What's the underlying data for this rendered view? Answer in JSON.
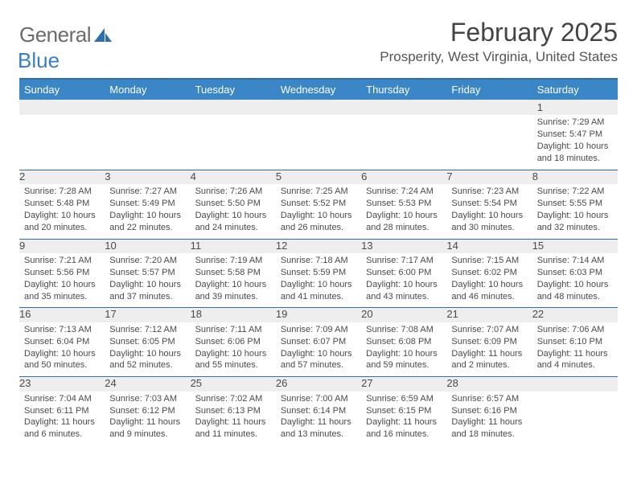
{
  "logo": {
    "main": "General",
    "sub": "Blue"
  },
  "title": "February 2025",
  "location": "Prosperity, West Virginia, United States",
  "colors": {
    "header_bg": "#3a86c6",
    "rule": "#2f6fae",
    "daynum_bg": "#eeeeee",
    "text": "#4a4a4a"
  },
  "day_headers": [
    "Sunday",
    "Monday",
    "Tuesday",
    "Wednesday",
    "Thursday",
    "Friday",
    "Saturday"
  ],
  "weeks": [
    [
      null,
      null,
      null,
      null,
      null,
      null,
      {
        "n": "1",
        "sr": "Sunrise: 7:29 AM",
        "ss": "Sunset: 5:47 PM",
        "dl": "Daylight: 10 hours and 18 minutes."
      }
    ],
    [
      {
        "n": "2",
        "sr": "Sunrise: 7:28 AM",
        "ss": "Sunset: 5:48 PM",
        "dl": "Daylight: 10 hours and 20 minutes."
      },
      {
        "n": "3",
        "sr": "Sunrise: 7:27 AM",
        "ss": "Sunset: 5:49 PM",
        "dl": "Daylight: 10 hours and 22 minutes."
      },
      {
        "n": "4",
        "sr": "Sunrise: 7:26 AM",
        "ss": "Sunset: 5:50 PM",
        "dl": "Daylight: 10 hours and 24 minutes."
      },
      {
        "n": "5",
        "sr": "Sunrise: 7:25 AM",
        "ss": "Sunset: 5:52 PM",
        "dl": "Daylight: 10 hours and 26 minutes."
      },
      {
        "n": "6",
        "sr": "Sunrise: 7:24 AM",
        "ss": "Sunset: 5:53 PM",
        "dl": "Daylight: 10 hours and 28 minutes."
      },
      {
        "n": "7",
        "sr": "Sunrise: 7:23 AM",
        "ss": "Sunset: 5:54 PM",
        "dl": "Daylight: 10 hours and 30 minutes."
      },
      {
        "n": "8",
        "sr": "Sunrise: 7:22 AM",
        "ss": "Sunset: 5:55 PM",
        "dl": "Daylight: 10 hours and 32 minutes."
      }
    ],
    [
      {
        "n": "9",
        "sr": "Sunrise: 7:21 AM",
        "ss": "Sunset: 5:56 PM",
        "dl": "Daylight: 10 hours and 35 minutes."
      },
      {
        "n": "10",
        "sr": "Sunrise: 7:20 AM",
        "ss": "Sunset: 5:57 PM",
        "dl": "Daylight: 10 hours and 37 minutes."
      },
      {
        "n": "11",
        "sr": "Sunrise: 7:19 AM",
        "ss": "Sunset: 5:58 PM",
        "dl": "Daylight: 10 hours and 39 minutes."
      },
      {
        "n": "12",
        "sr": "Sunrise: 7:18 AM",
        "ss": "Sunset: 5:59 PM",
        "dl": "Daylight: 10 hours and 41 minutes."
      },
      {
        "n": "13",
        "sr": "Sunrise: 7:17 AM",
        "ss": "Sunset: 6:00 PM",
        "dl": "Daylight: 10 hours and 43 minutes."
      },
      {
        "n": "14",
        "sr": "Sunrise: 7:15 AM",
        "ss": "Sunset: 6:02 PM",
        "dl": "Daylight: 10 hours and 46 minutes."
      },
      {
        "n": "15",
        "sr": "Sunrise: 7:14 AM",
        "ss": "Sunset: 6:03 PM",
        "dl": "Daylight: 10 hours and 48 minutes."
      }
    ],
    [
      {
        "n": "16",
        "sr": "Sunrise: 7:13 AM",
        "ss": "Sunset: 6:04 PM",
        "dl": "Daylight: 10 hours and 50 minutes."
      },
      {
        "n": "17",
        "sr": "Sunrise: 7:12 AM",
        "ss": "Sunset: 6:05 PM",
        "dl": "Daylight: 10 hours and 52 minutes."
      },
      {
        "n": "18",
        "sr": "Sunrise: 7:11 AM",
        "ss": "Sunset: 6:06 PM",
        "dl": "Daylight: 10 hours and 55 minutes."
      },
      {
        "n": "19",
        "sr": "Sunrise: 7:09 AM",
        "ss": "Sunset: 6:07 PM",
        "dl": "Daylight: 10 hours and 57 minutes."
      },
      {
        "n": "20",
        "sr": "Sunrise: 7:08 AM",
        "ss": "Sunset: 6:08 PM",
        "dl": "Daylight: 10 hours and 59 minutes."
      },
      {
        "n": "21",
        "sr": "Sunrise: 7:07 AM",
        "ss": "Sunset: 6:09 PM",
        "dl": "Daylight: 11 hours and 2 minutes."
      },
      {
        "n": "22",
        "sr": "Sunrise: 7:06 AM",
        "ss": "Sunset: 6:10 PM",
        "dl": "Daylight: 11 hours and 4 minutes."
      }
    ],
    [
      {
        "n": "23",
        "sr": "Sunrise: 7:04 AM",
        "ss": "Sunset: 6:11 PM",
        "dl": "Daylight: 11 hours and 6 minutes."
      },
      {
        "n": "24",
        "sr": "Sunrise: 7:03 AM",
        "ss": "Sunset: 6:12 PM",
        "dl": "Daylight: 11 hours and 9 minutes."
      },
      {
        "n": "25",
        "sr": "Sunrise: 7:02 AM",
        "ss": "Sunset: 6:13 PM",
        "dl": "Daylight: 11 hours and 11 minutes."
      },
      {
        "n": "26",
        "sr": "Sunrise: 7:00 AM",
        "ss": "Sunset: 6:14 PM",
        "dl": "Daylight: 11 hours and 13 minutes."
      },
      {
        "n": "27",
        "sr": "Sunrise: 6:59 AM",
        "ss": "Sunset: 6:15 PM",
        "dl": "Daylight: 11 hours and 16 minutes."
      },
      {
        "n": "28",
        "sr": "Sunrise: 6:57 AM",
        "ss": "Sunset: 6:16 PM",
        "dl": "Daylight: 11 hours and 18 minutes."
      },
      null
    ]
  ]
}
